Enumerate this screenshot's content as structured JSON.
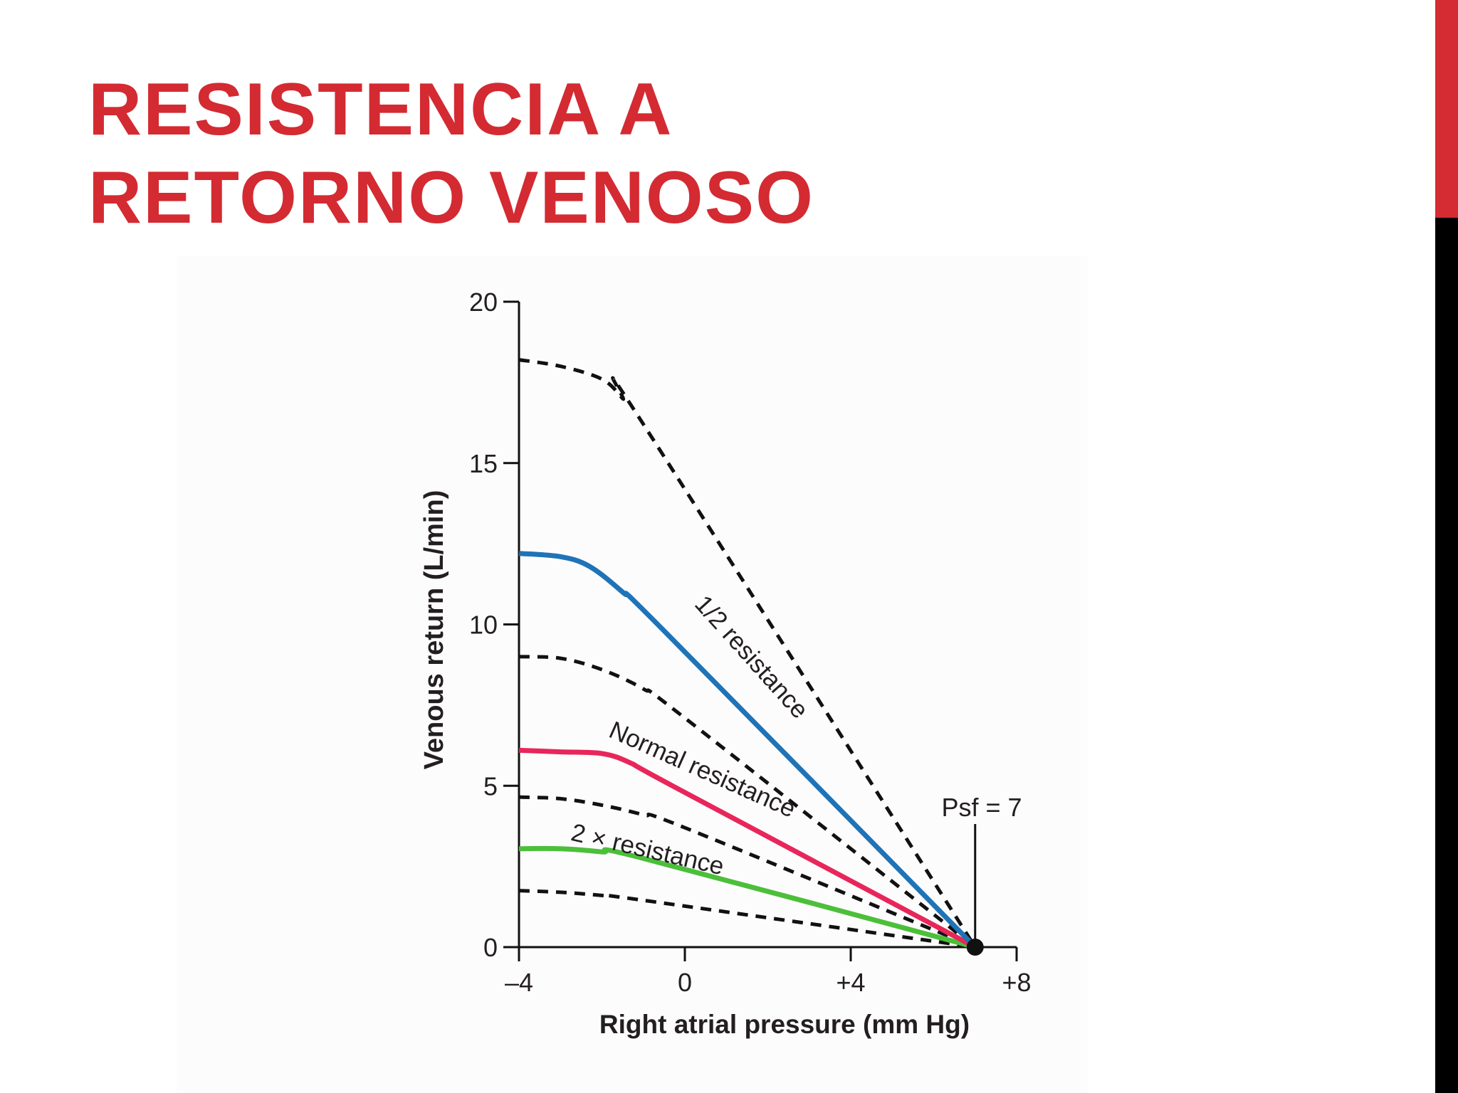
{
  "slide": {
    "title_line1": "RESISTENCIA A",
    "title_line2": "RETORNO VENOSO",
    "title_color": "#d42a32",
    "accent_colors": [
      "#d52b33",
      "#000000"
    ]
  },
  "chart_data": {
    "type": "line",
    "xlabel": "Right atrial pressure (mm Hg)",
    "ylabel": "Venous return (L/min)",
    "xlim": [
      -4,
      8
    ],
    "ylim": [
      0,
      20
    ],
    "x_ticks": [
      -4,
      0,
      4,
      8
    ],
    "x_tick_labels": [
      "–4",
      "0",
      "+4",
      "+8"
    ],
    "y_ticks": [
      0,
      5,
      10,
      15,
      20
    ],
    "y_tick_labels": [
      "0",
      "5",
      "10",
      "15",
      "20"
    ],
    "grid": false,
    "series": [
      {
        "name": "1/2 resistance",
        "color": "#1f73b7",
        "style": "solid",
        "x": [
          -4,
          -3,
          -2.3,
          -1.5,
          -0.5,
          7
        ],
        "y": [
          12.2,
          12.1,
          11.8,
          11.0,
          9.8,
          0
        ]
      },
      {
        "name": "Normal resistance",
        "color": "#e8265a",
        "style": "solid",
        "x": [
          -4,
          -3,
          -2,
          -1.3,
          -0.3,
          7
        ],
        "y": [
          6.1,
          6.05,
          6.0,
          5.7,
          5.0,
          0
        ]
      },
      {
        "name": "2 × resistance",
        "color": "#4cbf3a",
        "style": "solid",
        "x": [
          -4,
          -3,
          -2,
          -1,
          7
        ],
        "y": [
          3.05,
          3.05,
          2.95,
          2.75,
          0
        ]
      },
      {
        "name": "",
        "color": "#111111",
        "style": "dashed",
        "x": [
          -4,
          -3,
          -2,
          -1.5,
          -1,
          7
        ],
        "y": [
          18.2,
          18.0,
          17.6,
          17.0,
          16.2,
          0
        ]
      },
      {
        "name": "",
        "color": "#111111",
        "style": "dashed",
        "x": [
          -4,
          -3,
          -2,
          -1,
          0,
          7
        ],
        "y": [
          9.0,
          8.95,
          8.6,
          8.0,
          7.1,
          0
        ]
      },
      {
        "name": "",
        "color": "#111111",
        "style": "dashed",
        "x": [
          -4,
          -3,
          -2,
          -1,
          0,
          7
        ],
        "y": [
          4.65,
          4.6,
          4.4,
          4.1,
          3.7,
          0
        ]
      },
      {
        "name": "",
        "color": "#111111",
        "style": "dashed",
        "x": [
          -4,
          -3,
          -2,
          -1,
          7
        ],
        "y": [
          1.75,
          1.7,
          1.6,
          1.45,
          0
        ]
      }
    ],
    "annotations": [
      {
        "text": "Psf = 7",
        "x": 7,
        "y": 0
      }
    ]
  }
}
